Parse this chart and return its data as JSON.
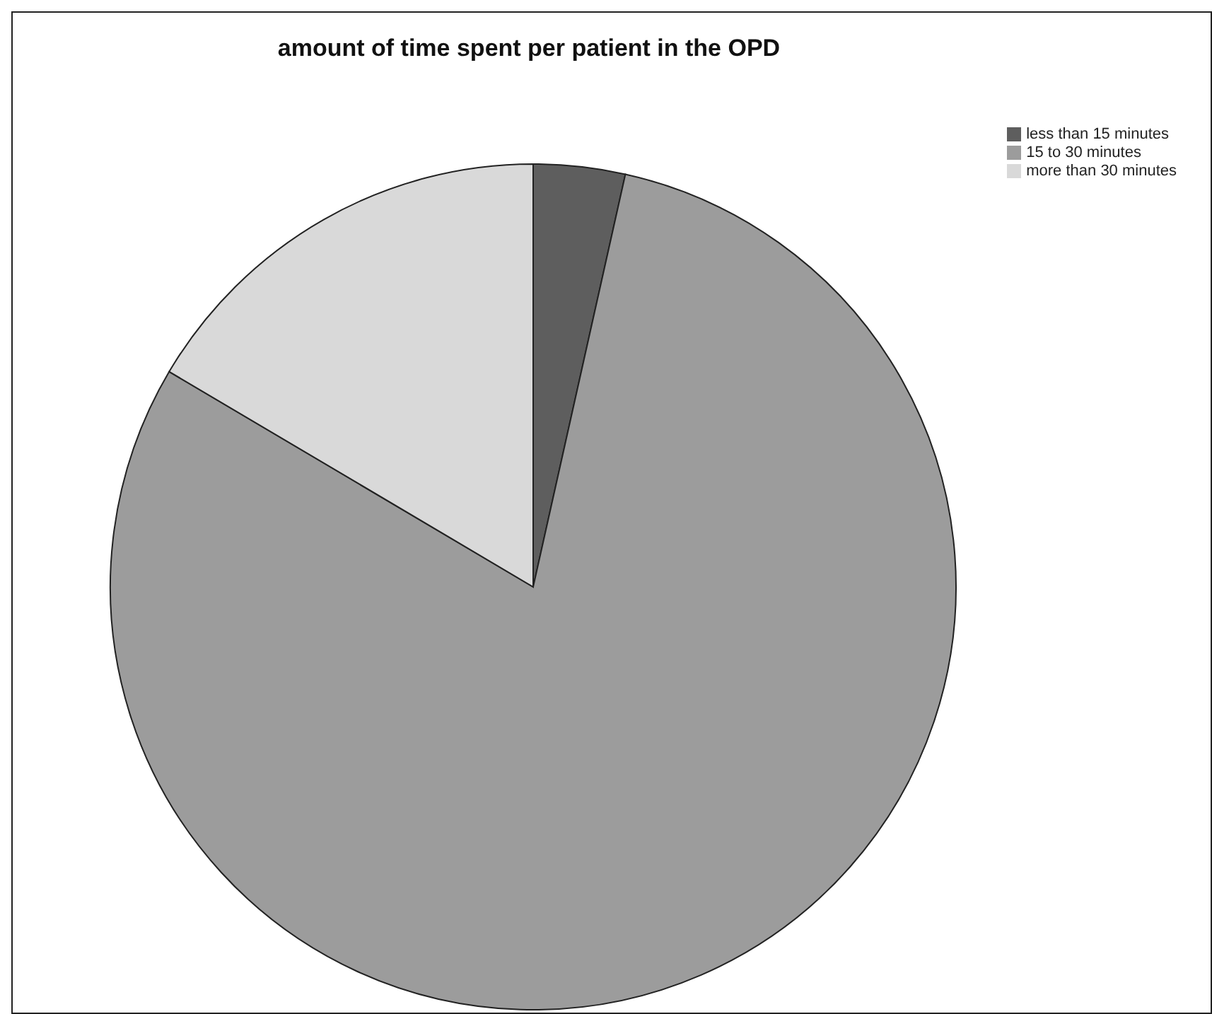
{
  "chart_data": {
    "type": "pie",
    "title": "amount of time spent per patient in the OPD",
    "categories": [
      "less than 15 minutes",
      "15 to 30 minutes",
      "more than 30 minutes"
    ],
    "values": [
      3.5,
      80,
      16.5
    ],
    "colors": [
      "#5e5e5e",
      "#9c9c9c",
      "#d9d9d9"
    ],
    "legend": "top right"
  }
}
